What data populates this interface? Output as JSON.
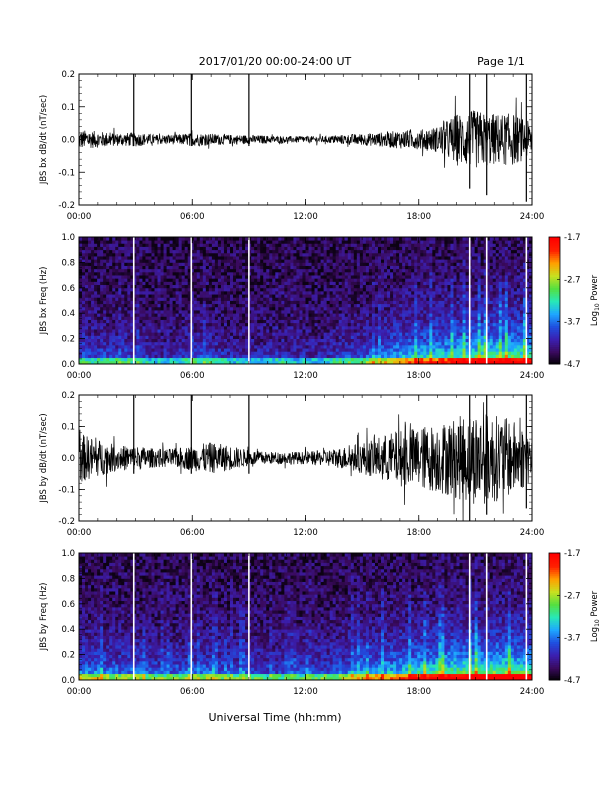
{
  "header": {
    "title": "2017/01/20  00:00-24:00 UT",
    "page": "Page 1/1"
  },
  "colors": {
    "trace": "#000000",
    "frame": "#000000",
    "gap_line": "#ffffff",
    "colormap": [
      "#000000",
      "#3a0a5e",
      "#3b1fb0",
      "#1f4fe0",
      "#1ea7ff",
      "#27e8b8",
      "#55e040",
      "#c8e020",
      "#ffa000",
      "#ff2000",
      "#ff0000"
    ]
  },
  "chart_data": [
    {
      "type": "line",
      "ylabel": "JBS bx dB/dt (nT/sec)",
      "xlabel": "",
      "xlim": [
        0,
        24
      ],
      "ylim": [
        -0.2,
        0.2
      ],
      "xticks": [
        "00:00",
        "06:00",
        "12:00",
        "18:00",
        "24:00"
      ],
      "yticks": [
        "0.2",
        "0.1",
        "0.0",
        "-0.1",
        "-0.2"
      ],
      "envelope": {
        "hours": [
          0,
          1,
          2,
          3,
          4,
          5,
          6,
          7,
          8,
          9,
          10,
          11,
          12,
          13,
          14,
          15,
          16,
          17,
          18,
          19,
          20,
          21,
          22,
          23,
          24
        ],
        "amplitude": [
          0.03,
          0.025,
          0.02,
          0.022,
          0.015,
          0.015,
          0.02,
          0.018,
          0.015,
          0.014,
          0.012,
          0.01,
          0.01,
          0.01,
          0.015,
          0.018,
          0.022,
          0.028,
          0.03,
          0.04,
          0.08,
          0.09,
          0.08,
          0.08,
          0.05
        ]
      },
      "spikes": [
        {
          "hour": 2.9,
          "low": -0.02,
          "high": 0.2
        },
        {
          "hour": 5.95,
          "low": -0.02,
          "high": 0.2
        },
        {
          "hour": 9.0,
          "low": -0.02,
          "high": 0.2
        },
        {
          "hour": 20.7,
          "low": -0.15,
          "high": 0.2
        },
        {
          "hour": 21.6,
          "low": -0.17,
          "high": 0.2
        },
        {
          "hour": 23.7,
          "low": -0.19,
          "high": 0.2
        }
      ]
    },
    {
      "type": "heatmap",
      "ylabel": "JBS bx Freq (Hz)",
      "xlabel": "",
      "xlim": [
        0,
        24
      ],
      "ylim": [
        0.0,
        1.0
      ],
      "xticks": [
        "00:00",
        "06:00",
        "12:00",
        "18:00",
        "24:00"
      ],
      "yticks": [
        "1.0",
        "0.8",
        "0.6",
        "0.4",
        "0.2",
        "0.0"
      ],
      "colorbar": {
        "label": "Log10 Power",
        "label_base": "Log",
        "label_sub": "10",
        "label_rest": " Power",
        "range": [
          -4.7,
          -1.7
        ],
        "ticks": [
          "-1.7",
          "-2.7",
          "-3.7",
          "-4.7"
        ]
      },
      "gap_hours": [
        2.9,
        5.95,
        9.0,
        20.7,
        21.6,
        23.7
      ],
      "activity": [
        0.3,
        0.3,
        0.3,
        0.3,
        0.2,
        0.2,
        0.3,
        0.3,
        0.2,
        0.2,
        0.2,
        0.2,
        0.2,
        0.2,
        0.3,
        0.35,
        0.45,
        0.55,
        0.6,
        0.65,
        0.7,
        0.75,
        0.8,
        0.8,
        0.75
      ]
    },
    {
      "type": "line",
      "ylabel": "JBS by dB/dt (nT/sec)",
      "xlabel": "",
      "xlim": [
        0,
        24
      ],
      "ylim": [
        -0.2,
        0.2
      ],
      "xticks": [
        "00:00",
        "06:00",
        "12:00",
        "18:00",
        "24:00"
      ],
      "yticks": [
        "0.2",
        "0.1",
        "0.0",
        "-0.1",
        "-0.2"
      ],
      "envelope": {
        "hours": [
          0,
          1,
          2,
          3,
          4,
          5,
          6,
          7,
          8,
          9,
          10,
          11,
          12,
          13,
          14,
          15,
          16,
          17,
          18,
          19,
          20,
          21,
          22,
          23,
          24
        ],
        "amplitude": [
          0.08,
          0.06,
          0.04,
          0.04,
          0.03,
          0.03,
          0.04,
          0.05,
          0.04,
          0.025,
          0.02,
          0.02,
          0.02,
          0.025,
          0.035,
          0.05,
          0.07,
          0.09,
          0.1,
          0.11,
          0.13,
          0.15,
          0.14,
          0.12,
          0.08
        ]
      },
      "spikes": [
        {
          "hour": 2.9,
          "low": -0.05,
          "high": 0.2
        },
        {
          "hour": 5.95,
          "low": -0.05,
          "high": 0.2
        },
        {
          "hour": 9.0,
          "low": -0.05,
          "high": 0.2
        },
        {
          "hour": 20.7,
          "low": -0.2,
          "high": 0.2
        },
        {
          "hour": 21.6,
          "low": -0.18,
          "high": 0.2
        },
        {
          "hour": 23.7,
          "low": -0.16,
          "high": 0.2
        }
      ]
    },
    {
      "type": "heatmap",
      "ylabel": "JBS by Freq (Hz)",
      "xlabel": "Universal Time (hh:mm)",
      "xlim": [
        0,
        24
      ],
      "ylim": [
        0.0,
        1.0
      ],
      "xticks": [
        "00:00",
        "06:00",
        "12:00",
        "18:00",
        "24:00"
      ],
      "yticks": [
        "1.0",
        "0.8",
        "0.6",
        "0.4",
        "0.2",
        "0.0"
      ],
      "colorbar": {
        "label": "Log10 Power",
        "label_base": "Log",
        "label_sub": "10",
        "label_rest": " Power",
        "range": [
          -4.7,
          -1.7
        ],
        "ticks": [
          "-1.7",
          "-2.7",
          "-3.7",
          "-4.7"
        ]
      },
      "gap_hours": [
        2.9,
        5.95,
        9.0,
        20.7,
        21.6,
        23.7
      ],
      "activity": [
        0.45,
        0.45,
        0.4,
        0.4,
        0.35,
        0.35,
        0.4,
        0.4,
        0.35,
        0.35,
        0.3,
        0.3,
        0.3,
        0.35,
        0.4,
        0.5,
        0.55,
        0.6,
        0.7,
        0.75,
        0.8,
        0.85,
        0.85,
        0.85,
        0.8
      ]
    }
  ]
}
